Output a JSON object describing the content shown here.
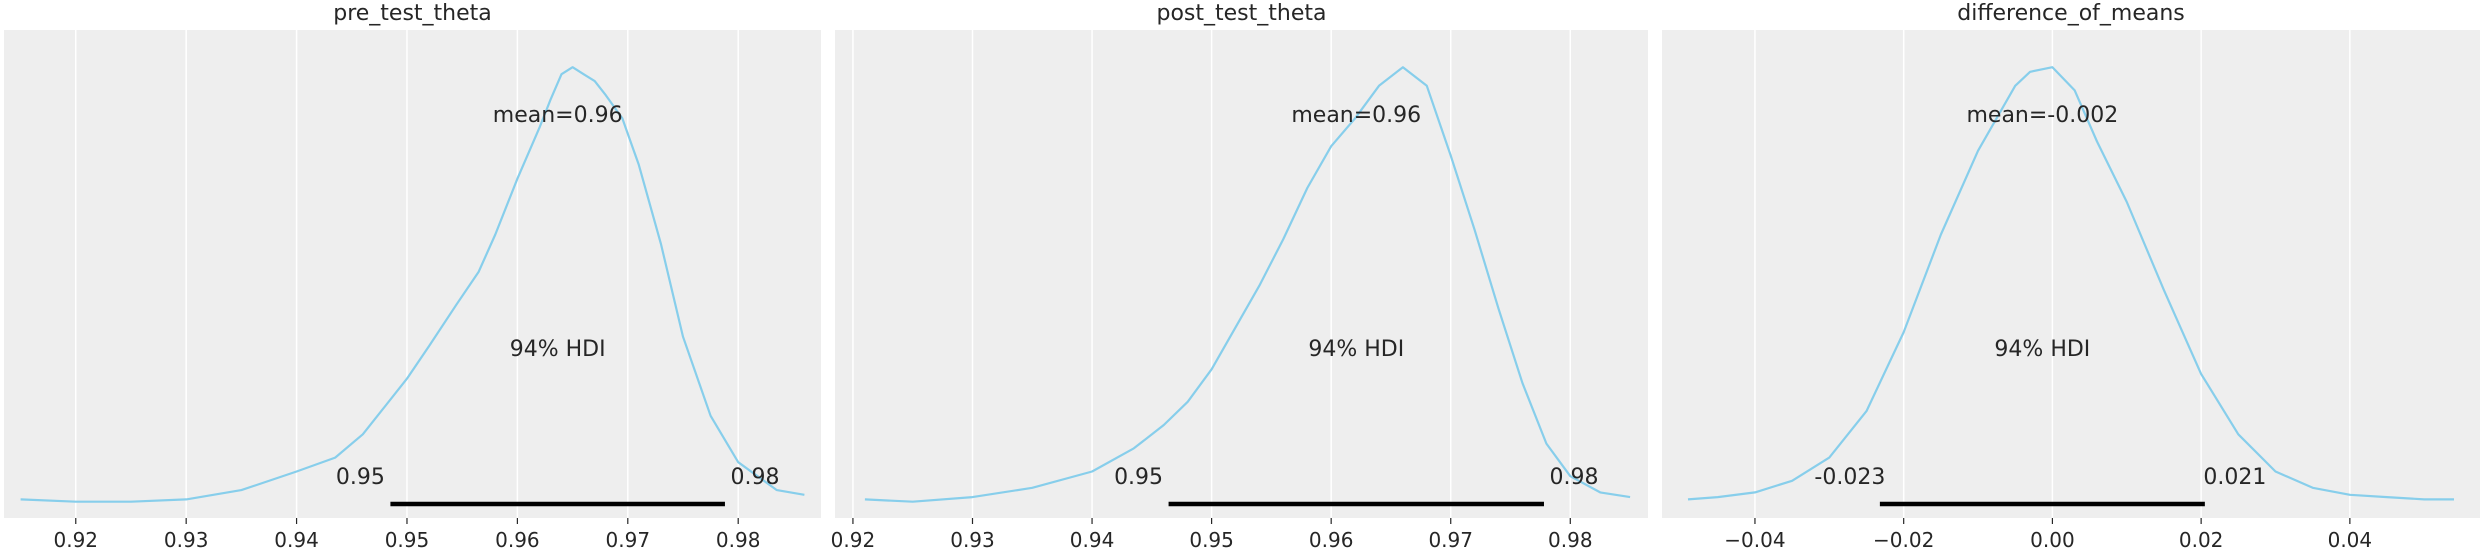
{
  "chart_data": [
    {
      "type": "line",
      "title": "pre_test_theta",
      "xlabel": "",
      "ylabel": "",
      "xlim": [
        0.9135,
        0.9875
      ],
      "ylim": [
        0,
        1.05
      ],
      "xticks": [
        0.92,
        0.93,
        0.94,
        0.95,
        0.96,
        0.97,
        0.98
      ],
      "xtick_labels": [
        "0.92",
        "0.93",
        "0.94",
        "0.95",
        "0.96",
        "0.97",
        "0.98"
      ],
      "grid": "on",
      "series": [
        {
          "x": [
            0.915,
            0.92,
            0.925,
            0.93,
            0.935,
            0.94,
            0.9435,
            0.946,
            0.948,
            0.95,
            0.952,
            0.9545,
            0.9565,
            0.958,
            0.96,
            0.962,
            0.963,
            0.964,
            0.965,
            0.966,
            0.967,
            0.968,
            0.9695,
            0.971,
            0.973,
            0.975,
            0.9775,
            0.98,
            0.9835,
            0.986
          ],
          "y": [
            0.04,
            0.035,
            0.035,
            0.04,
            0.06,
            0.1,
            0.13,
            0.18,
            0.24,
            0.3,
            0.37,
            0.46,
            0.53,
            0.61,
            0.73,
            0.84,
            0.9,
            0.955,
            0.97,
            0.955,
            0.94,
            0.91,
            0.86,
            0.76,
            0.59,
            0.39,
            0.22,
            0.12,
            0.06,
            0.05
          ],
          "color": "#87ceeb"
        }
      ],
      "mean_label": "mean=0.96",
      "hdi_label": "94% HDI",
      "hdi": [
        0.9485,
        0.9788
      ],
      "hdi_labels": [
        "0.95",
        "0.98"
      ]
    },
    {
      "type": "line",
      "title": "post_test_theta",
      "xlabel": "",
      "ylabel": "",
      "xlim": [
        0.9185,
        0.9865
      ],
      "ylim": [
        0,
        1.05
      ],
      "xticks": [
        0.92,
        0.93,
        0.94,
        0.95,
        0.96,
        0.97,
        0.98
      ],
      "xtick_labels": [
        "0.92",
        "0.93",
        "0.94",
        "0.95",
        "0.96",
        "0.97",
        "0.98"
      ],
      "grid": "on",
      "series": [
        {
          "x": [
            0.921,
            0.925,
            0.93,
            0.935,
            0.94,
            0.9435,
            0.946,
            0.948,
            0.95,
            0.952,
            0.954,
            0.956,
            0.958,
            0.96,
            0.962,
            0.964,
            0.966,
            0.968,
            0.97,
            0.972,
            0.974,
            0.976,
            0.978,
            0.98,
            0.9825,
            0.985
          ],
          "y": [
            0.04,
            0.035,
            0.045,
            0.065,
            0.1,
            0.15,
            0.2,
            0.25,
            0.32,
            0.41,
            0.5,
            0.6,
            0.71,
            0.8,
            0.86,
            0.93,
            0.97,
            0.93,
            0.78,
            0.62,
            0.45,
            0.29,
            0.16,
            0.09,
            0.055,
            0.045
          ],
          "color": "#87ceeb"
        }
      ],
      "mean_label": "mean=0.96",
      "hdi_label": "94% HDI",
      "hdi": [
        0.9464,
        0.9778
      ],
      "hdi_labels": [
        "0.95",
        "0.98"
      ]
    },
    {
      "type": "line",
      "title": "difference_of_means",
      "xlabel": "",
      "ylabel": "",
      "xlim": [
        -0.0525,
        0.0575
      ],
      "ylim": [
        0,
        1.05
      ],
      "xticks": [
        -0.04,
        -0.02,
        0.0,
        0.02,
        0.04
      ],
      "xtick_labels": [
        "−0.04",
        "−0.02",
        "0.00",
        "0.02",
        "0.04"
      ],
      "grid": "on",
      "series": [
        {
          "x": [
            -0.049,
            -0.045,
            -0.04,
            -0.035,
            -0.03,
            -0.025,
            -0.02,
            -0.015,
            -0.01,
            -0.005,
            -0.003,
            0.0,
            0.003,
            0.006,
            0.01,
            0.015,
            0.02,
            0.025,
            0.03,
            0.035,
            0.04,
            0.045,
            0.05,
            0.054
          ],
          "y": [
            0.04,
            0.045,
            0.055,
            0.08,
            0.13,
            0.23,
            0.4,
            0.61,
            0.79,
            0.93,
            0.96,
            0.97,
            0.92,
            0.81,
            0.68,
            0.49,
            0.31,
            0.18,
            0.1,
            0.065,
            0.05,
            0.045,
            0.04,
            0.04
          ],
          "color": "#87ceeb"
        }
      ],
      "mean_label": "mean=-0.002",
      "hdi_label": "94% HDI",
      "hdi": [
        -0.0232,
        0.0205
      ],
      "hdi_labels": [
        "-0.023",
        "0.021"
      ]
    }
  ]
}
